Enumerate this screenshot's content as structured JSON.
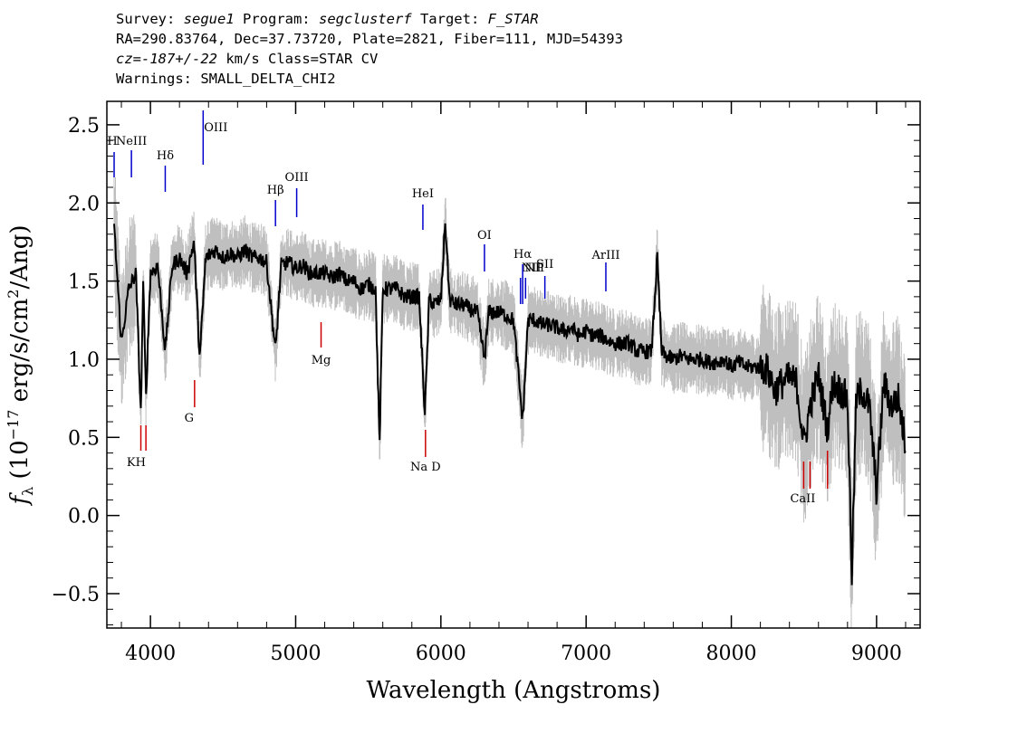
{
  "header": {
    "line1": {
      "survey_label": "Survey: ",
      "survey": "segue1",
      "program_label": " Program: ",
      "program": "segclusterf",
      "target_label": " Target: ",
      "target": "F_STAR"
    },
    "line2": "RA=290.83764, Dec=37.73720, Plate=2821, Fiber=111, MJD=54393",
    "line3": {
      "cz": "cz",
      "eq": "=",
      "value": "-187+/-22",
      "rest": " km/s Class=STAR CV"
    },
    "line4": "Warnings: SMALL_DELTA_CHI2"
  },
  "chart_data": {
    "type": "line",
    "xlabel": "Wavelength (Angstroms)",
    "ylabel": "f_λ (10^-17 erg/s/cm²/Ang)",
    "ylabel_parts": {
      "f": "f",
      "lambda": "λ",
      "pre": " (10",
      "exp": "−17",
      "mid": " erg/s/cm",
      "exp2": "2",
      "post": "/Ang)"
    },
    "xlim": [
      3700,
      9300
    ],
    "ylim": [
      -0.72,
      2.65
    ],
    "x_ticks": [
      4000,
      5000,
      6000,
      7000,
      8000,
      9000
    ],
    "x_tick_labels": [
      "4000",
      "5000",
      "6000",
      "7000",
      "8000",
      "9000"
    ],
    "y_ticks": [
      -0.5,
      0.0,
      0.5,
      1.0,
      1.5,
      2.0,
      2.5
    ],
    "y_tick_labels": [
      "−0.5",
      "0.0",
      "0.5",
      "1.0",
      "1.5",
      "2.0",
      "2.5"
    ],
    "series": [
      {
        "role": "flux",
        "color": "#000000",
        "points": [
          [
            3750,
            1.85
          ],
          [
            3800,
            1.1
          ],
          [
            3850,
            1.45
          ],
          [
            3900,
            1.55
          ],
          [
            3934,
            0.65
          ],
          [
            3950,
            1.5
          ],
          [
            3969,
            0.75
          ],
          [
            4000,
            1.55
          ],
          [
            4050,
            1.6
          ],
          [
            4102,
            1.05
          ],
          [
            4150,
            1.6
          ],
          [
            4200,
            1.65
          ],
          [
            4250,
            1.55
          ],
          [
            4300,
            1.75
          ],
          [
            4340,
            1.0
          ],
          [
            4380,
            1.65
          ],
          [
            4450,
            1.7
          ],
          [
            4500,
            1.65
          ],
          [
            4550,
            1.68
          ],
          [
            4600,
            1.65
          ],
          [
            4650,
            1.7
          ],
          [
            4700,
            1.65
          ],
          [
            4750,
            1.65
          ],
          [
            4800,
            1.62
          ],
          [
            4861,
            1.05
          ],
          [
            4900,
            1.6
          ],
          [
            4950,
            1.62
          ],
          [
            5000,
            1.58
          ],
          [
            5050,
            1.6
          ],
          [
            5100,
            1.55
          ],
          [
            5150,
            1.55
          ],
          [
            5200,
            1.55
          ],
          [
            5250,
            1.52
          ],
          [
            5300,
            1.55
          ],
          [
            5350,
            1.5
          ],
          [
            5400,
            1.5
          ],
          [
            5450,
            1.45
          ],
          [
            5500,
            1.48
          ],
          [
            5550,
            1.45
          ],
          [
            5578,
            0.45
          ],
          [
            5600,
            1.45
          ],
          [
            5650,
            1.45
          ],
          [
            5700,
            1.45
          ],
          [
            5750,
            1.4
          ],
          [
            5800,
            1.4
          ],
          [
            5850,
            1.4
          ],
          [
            5890,
            0.65
          ],
          [
            5920,
            1.4
          ],
          [
            5950,
            1.35
          ],
          [
            6000,
            1.38
          ],
          [
            6030,
            1.88
          ],
          [
            6060,
            1.38
          ],
          [
            6100,
            1.35
          ],
          [
            6150,
            1.35
          ],
          [
            6200,
            1.32
          ],
          [
            6250,
            1.3
          ],
          [
            6300,
            1.0
          ],
          [
            6330,
            1.3
          ],
          [
            6400,
            1.3
          ],
          [
            6450,
            1.28
          ],
          [
            6500,
            1.25
          ],
          [
            6563,
            0.6
          ],
          [
            6600,
            1.25
          ],
          [
            6650,
            1.25
          ],
          [
            6700,
            1.22
          ],
          [
            6750,
            1.22
          ],
          [
            6800,
            1.2
          ],
          [
            6850,
            1.18
          ],
          [
            6900,
            1.2
          ],
          [
            6950,
            1.15
          ],
          [
            7000,
            1.18
          ],
          [
            7050,
            1.15
          ],
          [
            7100,
            1.15
          ],
          [
            7150,
            1.12
          ],
          [
            7200,
            1.1
          ],
          [
            7250,
            1.1
          ],
          [
            7300,
            1.1
          ],
          [
            7350,
            1.05
          ],
          [
            7400,
            1.05
          ],
          [
            7450,
            1.05
          ],
          [
            7490,
            1.65
          ],
          [
            7520,
            1.05
          ],
          [
            7550,
            1.02
          ],
          [
            7600,
            1.0
          ],
          [
            7650,
            1.02
          ],
          [
            7700,
            1.0
          ],
          [
            7750,
            1.0
          ],
          [
            7800,
            1.0
          ],
          [
            7850,
            0.98
          ],
          [
            7900,
            0.98
          ],
          [
            7950,
            1.0
          ],
          [
            8000,
            0.95
          ],
          [
            8050,
            0.98
          ],
          [
            8100,
            0.95
          ],
          [
            8150,
            0.95
          ],
          [
            8200,
            0.95
          ],
          [
            8250,
            0.93
          ],
          [
            8300,
            0.8
          ],
          [
            8350,
            0.85
          ],
          [
            8400,
            0.88
          ],
          [
            8450,
            0.85
          ],
          [
            8500,
            0.45
          ],
          [
            8542,
            0.7
          ],
          [
            8600,
            0.9
          ],
          [
            8662,
            0.55
          ],
          [
            8700,
            0.85
          ],
          [
            8750,
            0.8
          ],
          [
            8800,
            0.75
          ],
          [
            8830,
            -0.37
          ],
          [
            8860,
            0.75
          ],
          [
            8900,
            0.8
          ],
          [
            8950,
            0.7
          ],
          [
            9000,
            0.15
          ],
          [
            9050,
            0.85
          ],
          [
            9100,
            0.7
          ],
          [
            9150,
            0.75
          ],
          [
            9200,
            0.45
          ]
        ]
      },
      {
        "role": "error",
        "color": "#bfbfbf",
        "spread": 0.15
      }
    ],
    "emission_lines": [
      {
        "label": "H",
        "x": 3750,
        "color": "#0000cc"
      },
      {
        "label": "NeIII",
        "x": 3869,
        "color": "#0000cc"
      },
      {
        "label": "Hδ",
        "x": 4102,
        "color": "#0000cc"
      },
      {
        "label": "OIII",
        "x": 4363,
        "color": "#0000cc"
      },
      {
        "label": "Hβ",
        "x": 4861,
        "color": "#0000cc"
      },
      {
        "label": "OIII",
        "x": 5007,
        "color": "#0000cc"
      },
      {
        "label": "HeI",
        "x": 5876,
        "color": "#0000cc"
      },
      {
        "label": "OI",
        "x": 6300,
        "color": "#0000cc"
      },
      {
        "label": "NII",
        "x": 6548,
        "color": "#0000cc"
      },
      {
        "label": "Hα",
        "x": 6563,
        "color": "#0000cc"
      },
      {
        "label": "NII",
        "x": 6583,
        "color": "#0000cc"
      },
      {
        "label": "SII",
        "x": 6716,
        "color": "#0000cc"
      },
      {
        "label": "ArIII",
        "x": 7136,
        "color": "#0000cc"
      }
    ],
    "absorption_lines": [
      {
        "label": "KH",
        "x": 3952,
        "color": "#cc0000"
      },
      {
        "label": "G",
        "x": 4304,
        "color": "#cc0000"
      },
      {
        "label": "Mg",
        "x": 5175,
        "color": "#cc0000"
      },
      {
        "label": "Na D",
        "x": 5894,
        "color": "#cc0000"
      },
      {
        "label": "CaII",
        "x": 8542,
        "color": "#cc0000"
      }
    ]
  }
}
